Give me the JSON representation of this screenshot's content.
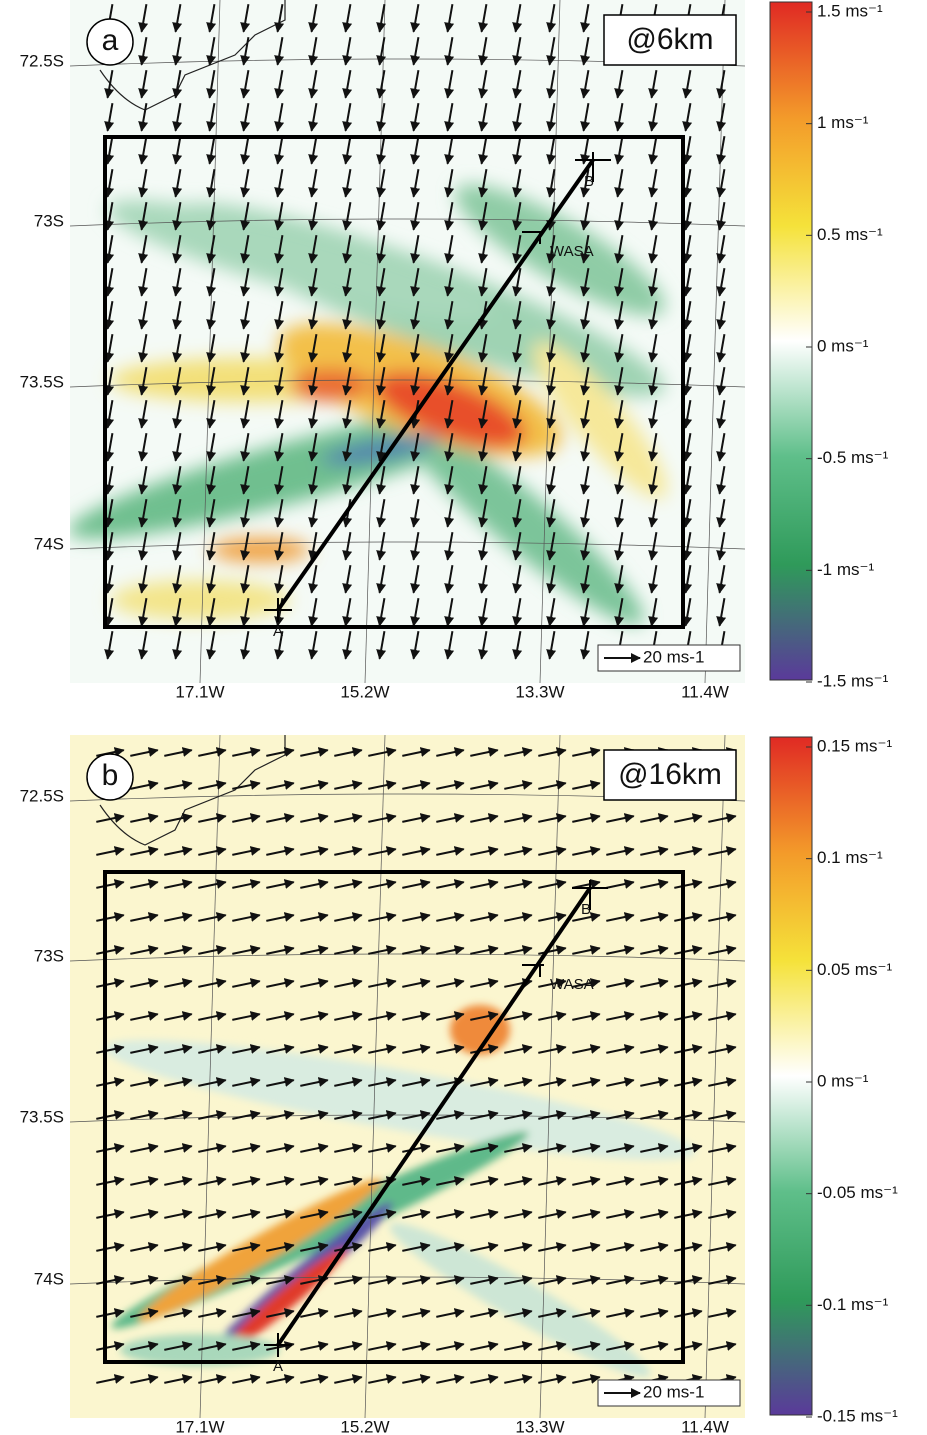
{
  "panels": [
    {
      "label": "a",
      "height_label": "@6km",
      "lat_labels": [
        "72.5S",
        "73S",
        "73.5S",
        "74S"
      ],
      "lon_labels": [
        "17.1W",
        "15.2W",
        "13.3W",
        "11.4W"
      ],
      "point_a": "A",
      "point_b": "B",
      "station": "WASA",
      "reference_arrow": "20 ms-1",
      "colorbar_labels": [
        "1.5 ms⁻¹",
        "1 ms⁻¹",
        "0.5 ms⁻¹",
        "0 ms⁻¹",
        "-0.5 ms⁻¹",
        "-1 ms⁻¹",
        "-1.5 ms⁻¹"
      ]
    },
    {
      "label": "b",
      "height_label": "@16km",
      "lat_labels": [
        "72.5S",
        "73S",
        "73.5S",
        "74S"
      ],
      "lon_labels": [
        "17.1W",
        "15.2W",
        "13.3W",
        "11.4W"
      ],
      "point_a": "A",
      "point_b": "B",
      "station": "WASA",
      "reference_arrow": "20 ms-1",
      "colorbar_labels": [
        "0.15 ms⁻¹",
        "0.1 ms⁻¹",
        "0.05 ms⁻¹",
        "0 ms⁻¹",
        "-0.05 ms⁻¹",
        "-0.1 ms⁻¹",
        "-0.15 ms⁻¹"
      ]
    }
  ]
}
